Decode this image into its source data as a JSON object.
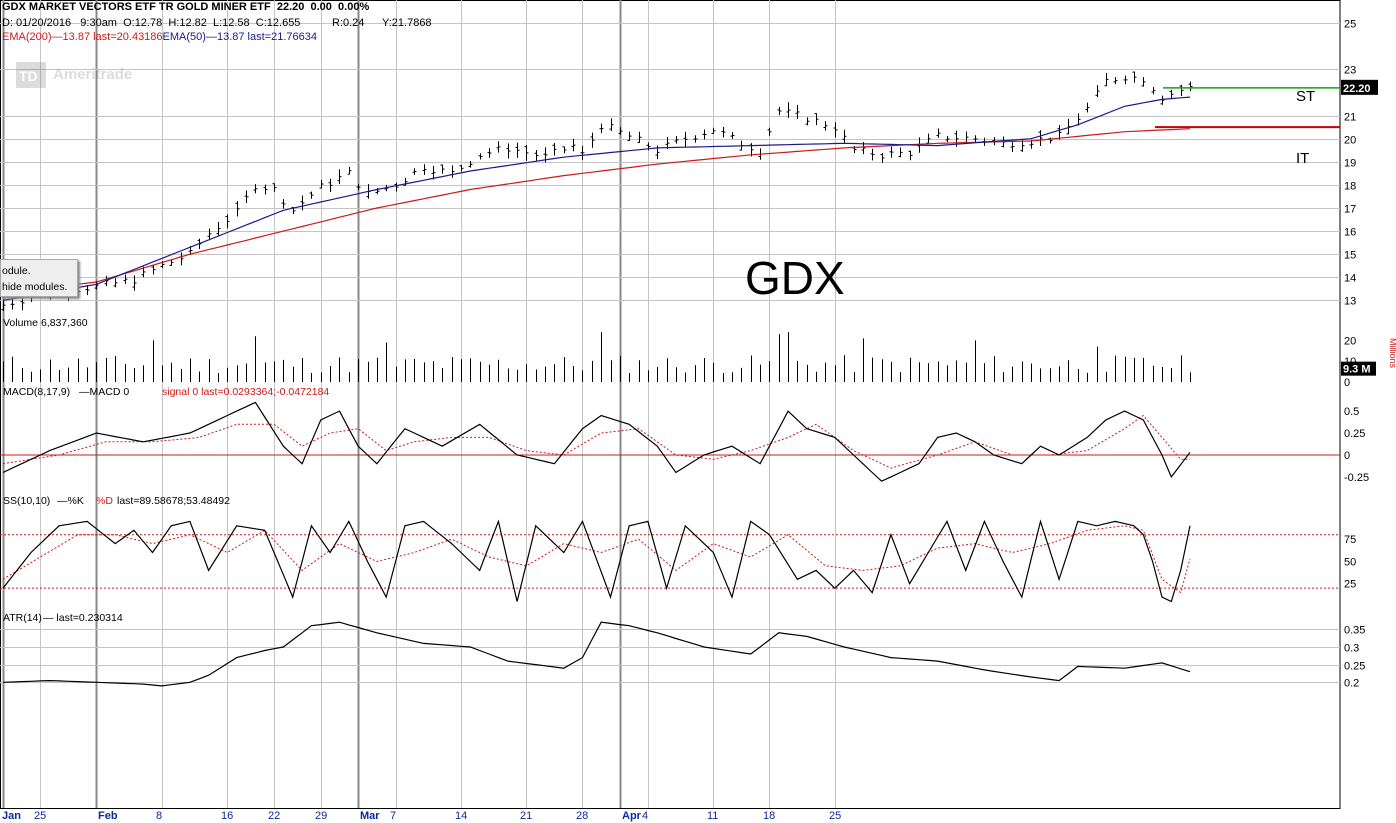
{
  "header": {
    "title": "GDX MARKET VECTORS ETF TR GOLD MINER ETF",
    "price": "22.20",
    "change": "0.00",
    "change_pct": "0.00%",
    "quote": "D: 01/20/2016   9:30am  O:12.78  H:12.82  L:12.58  C:12.655",
    "range": "R:0.24",
    "y_val": "Y:21.7868",
    "ema200": "EMA(200)",
    "ema200_val": "—13.87 last=20.43186",
    "ema50": "EMA(50)",
    "ema50_val": "—13.87 last=21.76634"
  },
  "watermark": "Ameritrade",
  "ticker_label": "GDX",
  "tooltip": {
    "line1": "odule.",
    "line2": "hide modules."
  },
  "colors": {
    "grid": "#c4c4c4",
    "price_bar": "#000000",
    "ema50": "#1a1a8c",
    "ema200": "#cc1a1a",
    "st_line": "#00b000",
    "it_line": "#cc0000",
    "axis_text": "#000000",
    "date_text": "#0a2aa0"
  },
  "chart_data": [
    {
      "type": "ohlc",
      "panel": "price",
      "annotations": [
        "ST",
        "IT"
      ],
      "price_tag": "22.20",
      "y_ticks": [
        "25",
        "23",
        "21",
        "20",
        "19",
        "18",
        "17",
        "16",
        "15",
        "14",
        "13"
      ],
      "ylim": [
        12.5,
        26
      ],
      "support_levels": {
        "ST": 22.2,
        "IT": 20.5
      },
      "close_path": [
        [
          0,
          12.8
        ],
        [
          5,
          13.4
        ],
        [
          10,
          13.6
        ],
        [
          14,
          13.9
        ],
        [
          17,
          14.5
        ],
        [
          20,
          15.0
        ],
        [
          22,
          15.9
        ],
        [
          25,
          16.8
        ],
        [
          27,
          18.0
        ],
        [
          29,
          17.8
        ],
        [
          31,
          16.9
        ],
        [
          34,
          17.9
        ],
        [
          37,
          18.5
        ],
        [
          39,
          17.6
        ],
        [
          42,
          18.0
        ],
        [
          45,
          18.8
        ],
        [
          48,
          18.5
        ],
        [
          51,
          19.3
        ],
        [
          54,
          19.6
        ],
        [
          58,
          19.2
        ],
        [
          61,
          19.7
        ],
        [
          62,
          19.3
        ],
        [
          64,
          20.6
        ],
        [
          67,
          20.1
        ],
        [
          70,
          19.5
        ],
        [
          73,
          20.0
        ],
        [
          76,
          20.4
        ],
        [
          79,
          19.8
        ],
        [
          81,
          19.5
        ],
        [
          83,
          21.2
        ],
        [
          86,
          20.9
        ],
        [
          89,
          20.5
        ],
        [
          91,
          19.5
        ],
        [
          94,
          19.3
        ],
        [
          97,
          19.4
        ],
        [
          100,
          20.1
        ],
        [
          104,
          20.0
        ],
        [
          107,
          19.8
        ],
        [
          110,
          19.9
        ],
        [
          113,
          20.1
        ],
        [
          116,
          21.3
        ],
        [
          118,
          22.5
        ],
        [
          120,
          22.7
        ],
        [
          122,
          22.6
        ],
        [
          124,
          21.8
        ],
        [
          126,
          22.1
        ],
        [
          127,
          22.2
        ]
      ],
      "ema50_path": [
        [
          0,
          13.0
        ],
        [
          10,
          13.7
        ],
        [
          20,
          15.3
        ],
        [
          30,
          16.9
        ],
        [
          40,
          17.8
        ],
        [
          50,
          18.6
        ],
        [
          60,
          19.2
        ],
        [
          70,
          19.6
        ],
        [
          80,
          19.7
        ],
        [
          90,
          19.8
        ],
        [
          100,
          19.7
        ],
        [
          110,
          20.0
        ],
        [
          115,
          20.6
        ],
        [
          120,
          21.4
        ],
        [
          124,
          21.7
        ],
        [
          127,
          21.8
        ]
      ],
      "ema200_path": [
        [
          0,
          13.3
        ],
        [
          10,
          13.8
        ],
        [
          20,
          15.0
        ],
        [
          30,
          16.0
        ],
        [
          40,
          17.0
        ],
        [
          50,
          17.8
        ],
        [
          60,
          18.4
        ],
        [
          70,
          18.9
        ],
        [
          80,
          19.3
        ],
        [
          90,
          19.6
        ],
        [
          100,
          19.8
        ],
        [
          110,
          19.9
        ],
        [
          120,
          20.3
        ],
        [
          127,
          20.43
        ]
      ]
    },
    {
      "type": "bar",
      "panel": "volume",
      "title": "Volume 6,837,360",
      "unit_label": "Millions",
      "last_tag": "9.3 M",
      "y_ticks": [
        "20",
        "10",
        "0"
      ],
      "ylim": [
        0,
        25
      ],
      "spikes": {
        "16": 20,
        "27": 22,
        "41": 19,
        "64": 24,
        "83": 23,
        "84": 24,
        "92": 21,
        "104": 20,
        "117": 17
      }
    },
    {
      "type": "line",
      "panel": "macd",
      "title": "MACD(8,17,9)",
      "macd_label": "—MACD 0",
      "signal_label": "signal 0 last=0.0293364;-0.0472184",
      "y_ticks": [
        "0.5",
        "0.25",
        "0",
        "-0.25"
      ],
      "ylim": [
        -0.4,
        0.65
      ],
      "macd_path": [
        [
          0,
          -0.2
        ],
        [
          5,
          0.05
        ],
        [
          10,
          0.25
        ],
        [
          15,
          0.15
        ],
        [
          20,
          0.25
        ],
        [
          23,
          0.4
        ],
        [
          27,
          0.6
        ],
        [
          30,
          0.1
        ],
        [
          32,
          -0.1
        ],
        [
          34,
          0.4
        ],
        [
          36,
          0.5
        ],
        [
          38,
          0.1
        ],
        [
          40,
          -0.1
        ],
        [
          43,
          0.3
        ],
        [
          47,
          0.1
        ],
        [
          51,
          0.35
        ],
        [
          55,
          0.0
        ],
        [
          59,
          -0.1
        ],
        [
          62,
          0.3
        ],
        [
          64,
          0.45
        ],
        [
          67,
          0.35
        ],
        [
          70,
          0.1
        ],
        [
          72,
          -0.2
        ],
        [
          75,
          0.0
        ],
        [
          78,
          0.1
        ],
        [
          81,
          -0.1
        ],
        [
          84,
          0.5
        ],
        [
          86,
          0.3
        ],
        [
          89,
          0.2
        ],
        [
          92,
          -0.1
        ],
        [
          94,
          -0.3
        ],
        [
          98,
          -0.1
        ],
        [
          100,
          0.2
        ],
        [
          102,
          0.25
        ],
        [
          104,
          0.15
        ],
        [
          106,
          0.0
        ],
        [
          109,
          -0.1
        ],
        [
          111,
          0.1
        ],
        [
          113,
          0.0
        ],
        [
          116,
          0.2
        ],
        [
          118,
          0.4
        ],
        [
          120,
          0.5
        ],
        [
          122,
          0.4
        ],
        [
          124,
          0.0
        ],
        [
          125,
          -0.25
        ],
        [
          127,
          0.03
        ]
      ],
      "signal_path": [
        [
          0,
          -0.1
        ],
        [
          6,
          0.0
        ],
        [
          11,
          0.15
        ],
        [
          16,
          0.15
        ],
        [
          21,
          0.2
        ],
        [
          25,
          0.35
        ],
        [
          29,
          0.35
        ],
        [
          32,
          0.1
        ],
        [
          35,
          0.25
        ],
        [
          38,
          0.3
        ],
        [
          41,
          0.05
        ],
        [
          44,
          0.15
        ],
        [
          48,
          0.2
        ],
        [
          52,
          0.2
        ],
        [
          56,
          0.05
        ],
        [
          60,
          0.0
        ],
        [
          64,
          0.25
        ],
        [
          68,
          0.3
        ],
        [
          72,
          0.0
        ],
        [
          76,
          -0.05
        ],
        [
          80,
          0.05
        ],
        [
          84,
          0.2
        ],
        [
          87,
          0.35
        ],
        [
          91,
          0.05
        ],
        [
          95,
          -0.15
        ],
        [
          100,
          0.0
        ],
        [
          104,
          0.15
        ],
        [
          108,
          0.0
        ],
        [
          112,
          0.0
        ],
        [
          116,
          0.05
        ],
        [
          120,
          0.3
        ],
        [
          122,
          0.45
        ],
        [
          124,
          0.2
        ],
        [
          126,
          -0.05
        ],
        [
          127,
          -0.05
        ]
      ]
    },
    {
      "type": "line",
      "panel": "stochastic",
      "title": "SS(10,10)",
      "k_label": "—%K",
      "d_label": "%D",
      "last_label": "last=89.58678;53.48492",
      "y_ticks": [
        "75",
        "50",
        "25"
      ],
      "ylim": [
        0,
        110
      ],
      "k_path": [
        [
          0,
          20
        ],
        [
          3,
          60
        ],
        [
          6,
          90
        ],
        [
          9,
          95
        ],
        [
          12,
          70
        ],
        [
          14,
          85
        ],
        [
          16,
          60
        ],
        [
          18,
          90
        ],
        [
          20,
          95
        ],
        [
          22,
          40
        ],
        [
          25,
          90
        ],
        [
          28,
          85
        ],
        [
          31,
          10
        ],
        [
          33,
          90
        ],
        [
          35,
          60
        ],
        [
          37,
          95
        ],
        [
          39,
          50
        ],
        [
          41,
          10
        ],
        [
          43,
          90
        ],
        [
          45,
          95
        ],
        [
          48,
          70
        ],
        [
          51,
          40
        ],
        [
          53,
          95
        ],
        [
          55,
          5
        ],
        [
          57,
          90
        ],
        [
          60,
          60
        ],
        [
          62,
          95
        ],
        [
          65,
          10
        ],
        [
          67,
          90
        ],
        [
          69,
          95
        ],
        [
          71,
          20
        ],
        [
          73,
          90
        ],
        [
          76,
          60
        ],
        [
          78,
          10
        ],
        [
          80,
          95
        ],
        [
          82,
          80
        ],
        [
          85,
          30
        ],
        [
          87,
          40
        ],
        [
          89,
          20
        ],
        [
          91,
          40
        ],
        [
          93,
          15
        ],
        [
          95,
          80
        ],
        [
          97,
          25
        ],
        [
          99,
          60
        ],
        [
          101,
          95
        ],
        [
          103,
          40
        ],
        [
          105,
          95
        ],
        [
          107,
          50
        ],
        [
          109,
          10
        ],
        [
          111,
          95
        ],
        [
          113,
          30
        ],
        [
          115,
          95
        ],
        [
          117,
          90
        ],
        [
          119,
          95
        ],
        [
          121,
          90
        ],
        [
          122,
          80
        ],
        [
          123,
          50
        ],
        [
          124,
          10
        ],
        [
          125,
          5
        ],
        [
          126,
          40
        ],
        [
          127,
          90
        ]
      ],
      "d_path": [
        [
          0,
          30
        ],
        [
          4,
          55
        ],
        [
          8,
          80
        ],
        [
          12,
          80
        ],
        [
          16,
          70
        ],
        [
          20,
          80
        ],
        [
          24,
          60
        ],
        [
          28,
          85
        ],
        [
          32,
          40
        ],
        [
          36,
          70
        ],
        [
          40,
          50
        ],
        [
          44,
          60
        ],
        [
          48,
          75
        ],
        [
          52,
          55
        ],
        [
          56,
          45
        ],
        [
          60,
          70
        ],
        [
          64,
          60
        ],
        [
          68,
          75
        ],
        [
          72,
          40
        ],
        [
          76,
          70
        ],
        [
          80,
          55
        ],
        [
          84,
          80
        ],
        [
          88,
          45
        ],
        [
          92,
          40
        ],
        [
          96,
          45
        ],
        [
          100,
          65
        ],
        [
          104,
          70
        ],
        [
          108,
          60
        ],
        [
          112,
          70
        ],
        [
          116,
          85
        ],
        [
          120,
          90
        ],
        [
          122,
          85
        ],
        [
          124,
          30
        ],
        [
          126,
          15
        ],
        [
          127,
          53
        ]
      ],
      "levels": [
        80,
        20
      ]
    },
    {
      "type": "line",
      "panel": "atr",
      "title": "ATR(14)",
      "atr_label": "— last=0.230314",
      "y_ticks": [
        "0.35",
        "0.3",
        "0.25",
        "0.2"
      ],
      "ylim": [
        0.15,
        0.4
      ],
      "atr_path": [
        [
          0,
          0.2
        ],
        [
          5,
          0.205
        ],
        [
          10,
          0.2
        ],
        [
          15,
          0.195
        ],
        [
          17,
          0.19
        ],
        [
          20,
          0.2
        ],
        [
          22,
          0.22
        ],
        [
          25,
          0.27
        ],
        [
          28,
          0.29
        ],
        [
          30,
          0.3
        ],
        [
          33,
          0.36
        ],
        [
          36,
          0.37
        ],
        [
          40,
          0.34
        ],
        [
          45,
          0.31
        ],
        [
          50,
          0.3
        ],
        [
          54,
          0.26
        ],
        [
          57,
          0.25
        ],
        [
          60,
          0.24
        ],
        [
          62,
          0.27
        ],
        [
          64,
          0.37
        ],
        [
          67,
          0.36
        ],
        [
          70,
          0.34
        ],
        [
          75,
          0.3
        ],
        [
          80,
          0.28
        ],
        [
          83,
          0.34
        ],
        [
          86,
          0.33
        ],
        [
          90,
          0.3
        ],
        [
          95,
          0.27
        ],
        [
          100,
          0.26
        ],
        [
          105,
          0.235
        ],
        [
          110,
          0.215
        ],
        [
          113,
          0.205
        ],
        [
          115,
          0.245
        ],
        [
          120,
          0.24
        ],
        [
          124,
          0.255
        ],
        [
          127,
          0.23
        ]
      ]
    }
  ],
  "date_axis": [
    {
      "label": "Jan",
      "idx": 0,
      "bold": true
    },
    {
      "label": "25",
      "idx": 4
    },
    {
      "label": "Feb",
      "idx": 10,
      "bold": true
    },
    {
      "label": "8",
      "idx": 17
    },
    {
      "label": "16",
      "idx": 24
    },
    {
      "label": "22",
      "idx": 29
    },
    {
      "label": "29",
      "idx": 34
    },
    {
      "label": "Mar",
      "idx": 38,
      "bold": true
    },
    {
      "label": "7",
      "idx": 42
    },
    {
      "label": "14",
      "idx": 49
    },
    {
      "label": "21",
      "idx": 56
    },
    {
      "label": "28",
      "idx": 62
    },
    {
      "label": "Apr",
      "idx": 66,
      "bold": true
    },
    {
      "label": "4",
      "idx": 69
    },
    {
      "label": "11",
      "idx": 76
    },
    {
      "label": "18",
      "idx": 82
    },
    {
      "label": "25",
      "idx": 89
    }
  ]
}
